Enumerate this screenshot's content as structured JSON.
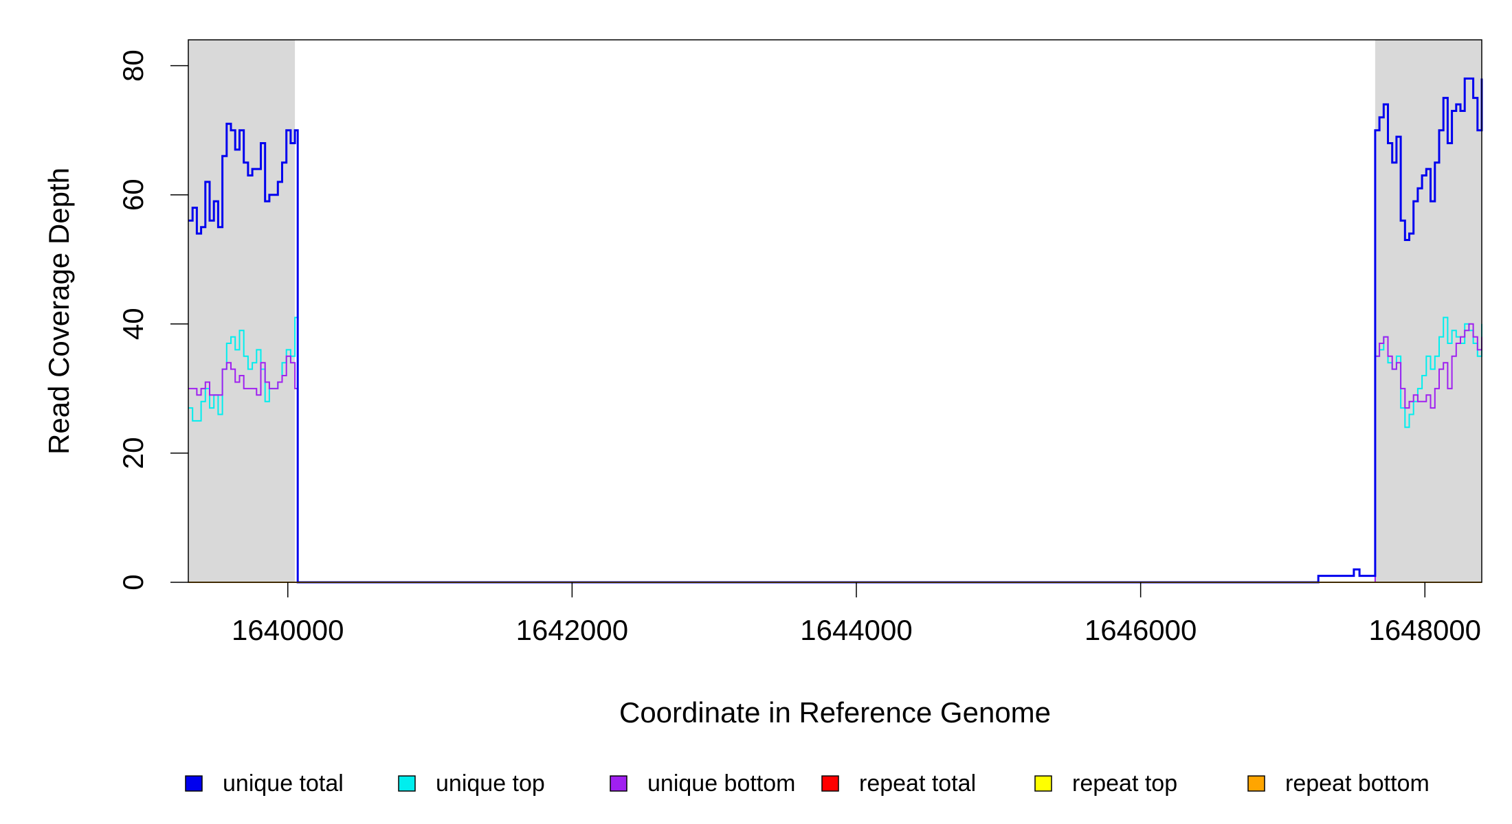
{
  "chart_data": {
    "type": "line",
    "xlabel": "Coordinate in Reference Genome",
    "ylabel": "Read Coverage Depth",
    "xlim": [
      1639300,
      1648400
    ],
    "ylim": [
      0,
      84
    ],
    "x_ticks": [
      1640000,
      1642000,
      1644000,
      1646000,
      1648000
    ],
    "x_tick_labels": [
      "1640000",
      "1642000",
      "1644000",
      "1646000",
      "1648000"
    ],
    "y_ticks": [
      0,
      20,
      40,
      60,
      80
    ],
    "y_tick_labels": [
      "0",
      "20",
      "40",
      "60",
      "80"
    ],
    "grid": false,
    "legend_position": "bottom",
    "shaded_regions": [
      {
        "x": [
          1639300,
          1640050
        ],
        "color": "#d9d9d9"
      },
      {
        "x": [
          1647650,
          1648400
        ],
        "color": "#d9d9d9"
      }
    ],
    "series": [
      {
        "name": "unique total",
        "color": "#0000ee",
        "x": [
          1639300,
          1639330,
          1639360,
          1639390,
          1639420,
          1639450,
          1639480,
          1639510,
          1639540,
          1639570,
          1639600,
          1639630,
          1639660,
          1639690,
          1639720,
          1639750,
          1639780,
          1639810,
          1639840,
          1639870,
          1639900,
          1639930,
          1639960,
          1639990,
          1640020,
          1640050,
          1640070,
          1647250,
          1647500,
          1647540,
          1647650,
          1647680,
          1647710,
          1647740,
          1647770,
          1647800,
          1647830,
          1647860,
          1647890,
          1647920,
          1647950,
          1647980,
          1648010,
          1648040,
          1648070,
          1648100,
          1648130,
          1648160,
          1648190,
          1648220,
          1648250,
          1648280,
          1648310,
          1648340,
          1648370,
          1648400
        ],
        "y": [
          56,
          58,
          54,
          55,
          62,
          56,
          59,
          55,
          66,
          71,
          70,
          67,
          70,
          65,
          63,
          64,
          64,
          68,
          59,
          60,
          60,
          62,
          65,
          70,
          68,
          70,
          0,
          1,
          2,
          1,
          70,
          72,
          74,
          68,
          65,
          69,
          56,
          53,
          54,
          59,
          61,
          63,
          64,
          59,
          65,
          70,
          75,
          68,
          73,
          74,
          73,
          78,
          78,
          75,
          70,
          78
        ]
      },
      {
        "name": "unique top",
        "color": "#00eeee",
        "x": [
          1639300,
          1639330,
          1639360,
          1639390,
          1639420,
          1639450,
          1639480,
          1639510,
          1639540,
          1639570,
          1639600,
          1639630,
          1639660,
          1639690,
          1639720,
          1639750,
          1639780,
          1639810,
          1639840,
          1639870,
          1639900,
          1639930,
          1639960,
          1639990,
          1640020,
          1640050,
          1640070,
          1647250,
          1647500,
          1647540,
          1647650,
          1647680,
          1647710,
          1647740,
          1647770,
          1647800,
          1647830,
          1647860,
          1647890,
          1647920,
          1647950,
          1647980,
          1648010,
          1648040,
          1648070,
          1648100,
          1648130,
          1648160,
          1648190,
          1648220,
          1648250,
          1648280,
          1648310,
          1648340,
          1648370,
          1648400
        ],
        "y": [
          27,
          25,
          25,
          28,
          30,
          27,
          29,
          26,
          33,
          37,
          38,
          36,
          39,
          35,
          33,
          34,
          36,
          33,
          28,
          30,
          30,
          31,
          34,
          36,
          35,
          41,
          0,
          1,
          2,
          1,
          35,
          36,
          38,
          34,
          33,
          35,
          27,
          24,
          26,
          28,
          30,
          32,
          35,
          33,
          35,
          38,
          41,
          37,
          39,
          38,
          37,
          40,
          39,
          37,
          35,
          40
        ]
      },
      {
        "name": "unique bottom",
        "color": "#a020f0",
        "x": [
          1639300,
          1639330,
          1639360,
          1639390,
          1639420,
          1639450,
          1639480,
          1639510,
          1639540,
          1639570,
          1639600,
          1639630,
          1639660,
          1639690,
          1639720,
          1639750,
          1639780,
          1639810,
          1639840,
          1639870,
          1639900,
          1639930,
          1639960,
          1639990,
          1640020,
          1640050,
          1640070,
          1647250,
          1647500,
          1647540,
          1647650,
          1647680,
          1647710,
          1647740,
          1647770,
          1647800,
          1647830,
          1647860,
          1647890,
          1647920,
          1647950,
          1647980,
          1648010,
          1648040,
          1648070,
          1648100,
          1648130,
          1648160,
          1648190,
          1648220,
          1648250,
          1648280,
          1648310,
          1648340,
          1648370,
          1648400
        ],
        "y": [
          30,
          30,
          29,
          30,
          31,
          29,
          29,
          29,
          33,
          34,
          33,
          31,
          32,
          30,
          30,
          30,
          29,
          34,
          31,
          30,
          30,
          31,
          32,
          35,
          34,
          30,
          0,
          0,
          0,
          0,
          35,
          37,
          38,
          35,
          33,
          34,
          30,
          27,
          28,
          29,
          28,
          28,
          29,
          27,
          30,
          33,
          34,
          30,
          35,
          37,
          38,
          39,
          40,
          38,
          36,
          38
        ]
      },
      {
        "name": "repeat total",
        "color": "#ff0000",
        "x": [
          1639300,
          1648400
        ],
        "y": [
          0,
          0
        ]
      },
      {
        "name": "repeat top",
        "color": "#ffff00",
        "x": [
          1639300,
          1648400
        ],
        "y": [
          0,
          0
        ]
      },
      {
        "name": "repeat bottom",
        "color": "#ffa500",
        "x": [
          1639300,
          1648400
        ],
        "y": [
          0,
          0
        ]
      }
    ]
  }
}
